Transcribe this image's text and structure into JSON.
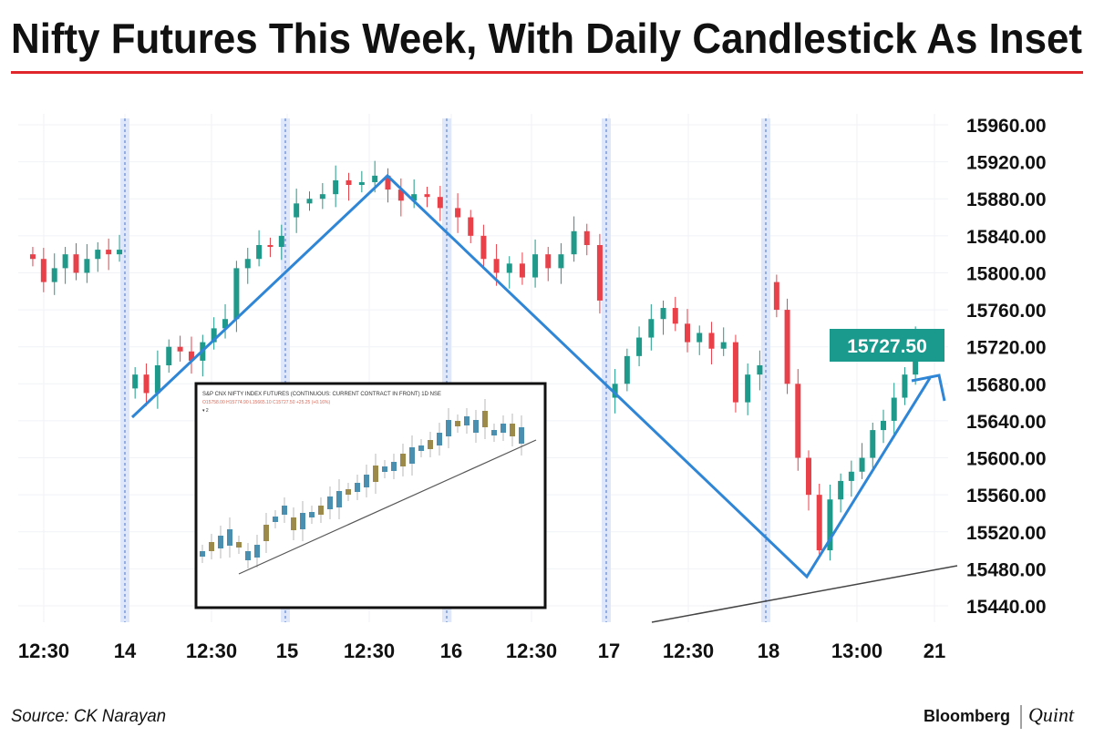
{
  "title": "Nifty Futures This Week, With Daily Candlestick As Inset",
  "source": "Source: CK Narayan",
  "logo": {
    "left": "Bloomberg",
    "right": "Quint"
  },
  "colors": {
    "title_rule": "#e0262b",
    "up": "#1f9a8a",
    "down": "#e8414a",
    "trend": "#2f86d6",
    "price_tag": "#1a9a8c",
    "divider": "#dfe8fb"
  },
  "chart_data": {
    "type": "candlestick",
    "title": "Nifty Futures This Week, With Daily Candlestick As Inset",
    "ylim": [
      15420,
      15980
    ],
    "y_ticks": [
      "15960.00",
      "15920.00",
      "15880.00",
      "15840.00",
      "15800.00",
      "15760.00",
      "15720.00",
      "15680.00",
      "15640.00",
      "15600.00",
      "15560.00",
      "15520.00",
      "15480.00",
      "15440.00"
    ],
    "x_ticks": [
      "12:30",
      "14",
      "12:30",
      "15",
      "12:30",
      "16",
      "12:30",
      "17",
      "12:30",
      "18",
      "13:00",
      "21"
    ],
    "last_price": "15727.50",
    "grid": true,
    "closes": [
      15815,
      15790,
      15805,
      15820,
      15800,
      15815,
      15825,
      15820,
      15825,
      15690,
      15670,
      15700,
      15720,
      15715,
      15705,
      15725,
      15740,
      15750,
      15805,
      15815,
      15830,
      15828,
      15840,
      15875,
      15880,
      15885,
      15900,
      15895,
      15898,
      15905,
      15890,
      15878,
      15885,
      15882,
      15870,
      15860,
      15840,
      15815,
      15800,
      15810,
      15795,
      15820,
      15805,
      15820,
      15845,
      15830,
      15770,
      15680,
      15710,
      15730,
      15750,
      15762,
      15745,
      15725,
      15735,
      15718,
      15725,
      15660,
      15690,
      15700,
      15760,
      15680,
      15600,
      15560,
      15500,
      15555,
      15575,
      15585,
      15600,
      15630,
      15640,
      15665,
      15690,
      15730
    ],
    "inset": {
      "title": "S&P CNX NIFTY INDEX FUTURES (CONTINUOUS: CURRENT CONTRACT IN FRONT) 1D NSE",
      "ohlc_line": "O15758.00 H15774.90 L15665.10 C15727.50 +25.25 (+0.16%)",
      "legend": "▾ 2"
    }
  }
}
